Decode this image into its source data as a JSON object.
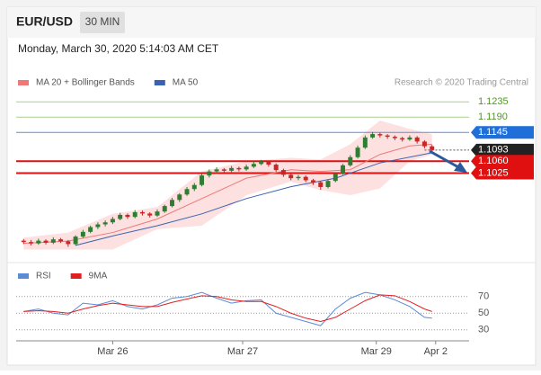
{
  "header": {
    "symbol": "EUR/USD",
    "interval": "30 MIN"
  },
  "timestamp": "Monday, March 30, 2020 5:14:03 AM CET",
  "credit": "Research © 2020 Trading Central",
  "chart_data": [
    {
      "type": "candlestick",
      "up_color": "#2e7d32",
      "down_color": "#c62828",
      "open": [
        1.0826,
        1.0822,
        1.0818,
        1.0826,
        1.082,
        1.083,
        1.0824,
        1.0816,
        1.0838,
        1.0852,
        1.0866,
        1.0874,
        1.088,
        1.089,
        1.0902,
        1.0896,
        1.091,
        1.0906,
        1.09,
        1.0912,
        1.0928,
        1.0946,
        1.0962,
        1.0978,
        1.099,
        1.1018,
        1.103,
        1.1036,
        1.1032,
        1.104,
        1.1036,
        1.1044,
        1.1052,
        1.1058,
        1.105,
        1.1034,
        1.102,
        1.101,
        1.1014,
        1.1004,
        1.0998,
        1.0984,
        1.1002,
        1.1024,
        1.1048,
        1.1072,
        1.11,
        1.113,
        1.114,
        1.1136,
        1.1132,
        1.1128,
        1.1124,
        1.113,
        1.1118,
        1.1104
      ],
      "high": [
        1.0831,
        1.0828,
        1.0832,
        1.083,
        1.0836,
        1.0834,
        1.0828,
        1.0842,
        1.0858,
        1.087,
        1.088,
        1.0886,
        1.0896,
        1.0908,
        1.0906,
        1.0916,
        1.0915,
        1.091,
        1.0918,
        1.0932,
        1.0952,
        1.0966,
        1.0984,
        1.0996,
        1.1024,
        1.1036,
        1.1042,
        1.104,
        1.1046,
        1.1044,
        1.105,
        1.1058,
        1.1064,
        1.1062,
        1.1054,
        1.1038,
        1.1024,
        1.102,
        1.1018,
        1.1008,
        1.1002,
        1.1006,
        1.1028,
        1.1052,
        1.1078,
        1.1106,
        1.1136,
        1.1146,
        1.1144,
        1.114,
        1.1136,
        1.1132,
        1.1136,
        1.1134,
        1.1122,
        1.1108
      ],
      "low": [
        1.0816,
        1.0812,
        1.0814,
        1.0815,
        1.0816,
        1.0819,
        1.0808,
        1.0812,
        1.0834,
        1.0848,
        1.086,
        1.0868,
        1.0875,
        1.0886,
        1.089,
        1.0892,
        1.09,
        1.0894,
        1.0896,
        1.0908,
        1.0924,
        1.094,
        1.0958,
        1.0972,
        1.0986,
        1.1012,
        1.1024,
        1.1026,
        1.1028,
        1.103,
        1.1032,
        1.104,
        1.1048,
        1.1044,
        1.1028,
        1.1014,
        1.1004,
        1.1004,
        1.0998,
        1.099,
        1.0976,
        1.098,
        1.0998,
        1.102,
        1.1044,
        1.1068,
        1.1096,
        1.1126,
        1.113,
        1.1126,
        1.1122,
        1.1118,
        1.112,
        1.1112,
        1.1098,
        1.1088
      ],
      "close": [
        1.0822,
        1.0818,
        1.0826,
        1.082,
        1.083,
        1.0824,
        1.0816,
        1.0838,
        1.0852,
        1.0866,
        1.0874,
        1.088,
        1.089,
        1.0902,
        1.0896,
        1.091,
        1.0906,
        1.09,
        1.0912,
        1.0928,
        1.0946,
        1.0962,
        1.0978,
        1.099,
        1.1018,
        1.103,
        1.1036,
        1.1032,
        1.104,
        1.1036,
        1.1044,
        1.1052,
        1.1058,
        1.105,
        1.1034,
        1.102,
        1.101,
        1.1014,
        1.1004,
        1.0998,
        1.0984,
        1.1002,
        1.1024,
        1.1048,
        1.1072,
        1.11,
        1.113,
        1.114,
        1.1136,
        1.1132,
        1.1128,
        1.1124,
        1.113,
        1.1118,
        1.1104,
        1.1093
      ],
      "series": [
        {
          "name": "MA 20 + Bollinger Bands",
          "color": "#f07878",
          "band_color": "#fde0e0",
          "x": [
            0,
            6,
            12,
            18,
            24,
            30,
            36,
            40,
            44,
            48,
            52,
            55
          ],
          "values": [
            1.0818,
            1.0825,
            1.085,
            1.089,
            1.095,
            1.101,
            1.1035,
            1.103,
            1.1035,
            1.108,
            1.1105,
            1.111
          ],
          "upper": [
            1.0835,
            1.085,
            1.0905,
            1.0925,
            1.103,
            1.106,
            1.107,
            1.1065,
            1.111,
            1.118,
            1.1155,
            1.114
          ],
          "lower": [
            1.08,
            1.08,
            1.08,
            1.086,
            1.087,
            1.096,
            1.1,
            1.0975,
            1.096,
            1.098,
            1.106,
            1.108
          ]
        },
        {
          "name": "MA 50",
          "color": "#3a62b0",
          "x": [
            7,
            12,
            18,
            24,
            30,
            36,
            42,
            48,
            55
          ],
          "values": [
            1.0812,
            1.084,
            1.087,
            1.0905,
            1.095,
            1.0985,
            1.101,
            1.1055,
            1.1085
          ]
        }
      ],
      "levels": [
        {
          "value": 1.1235,
          "color": "#4e9a1e",
          "line_color": "#a9d18e",
          "box": false
        },
        {
          "value": 1.119,
          "label": "1.1190",
          "color": "#4e9a1e",
          "line_color": "#a9d18e",
          "box": false
        },
        {
          "value": 1.1145,
          "color": "#1e6fd9",
          "line_color": "#5b8fe0",
          "box": true
        },
        {
          "value": 1.1093,
          "color": "#222222",
          "line_color": "#555555",
          "box": true,
          "dotted": true
        },
        {
          "value": 1.106,
          "label": "1.1060",
          "color": "#e01010",
          "line_color": "#e01010",
          "box": true,
          "thick": true
        },
        {
          "value": 1.1025,
          "color": "#e01010",
          "line_color": "#e01010",
          "box": true,
          "thick": true
        }
      ],
      "xlim": [
        -1,
        60
      ],
      "ylim": [
        1.078,
        1.127
      ],
      "xticks": [
        {
          "value": 12,
          "label": "Mar 26"
        },
        {
          "value": 29.5,
          "label": "Mar 27"
        },
        {
          "value": 47.5,
          "label": "Mar 29"
        },
        {
          "value": 55.5,
          "label": "Apr 2"
        }
      ]
    },
    {
      "type": "line",
      "xlim": [
        -1,
        60
      ],
      "ylim": [
        20,
        100
      ],
      "yticks": [
        70,
        50,
        30
      ],
      "x": [
        0,
        2,
        4,
        6,
        8,
        10,
        12,
        14,
        16,
        18,
        20,
        22,
        24,
        26,
        28,
        30,
        32,
        34,
        36,
        38,
        40,
        42,
        44,
        46,
        48,
        50,
        52,
        54,
        55
      ],
      "series": [
        {
          "name": "RSI",
          "color": "#5b8bd6",
          "values": [
            52,
            55,
            50,
            48,
            62,
            60,
            65,
            58,
            55,
            60,
            68,
            70,
            75,
            68,
            62,
            65,
            66,
            50,
            45,
            40,
            35,
            55,
            68,
            75,
            72,
            66,
            58,
            45,
            44
          ]
        },
        {
          "name": "9MA",
          "color": "#e02020",
          "values": [
            52,
            53,
            52,
            50,
            55,
            59,
            62,
            60,
            58,
            58,
            63,
            67,
            71,
            70,
            66,
            64,
            64,
            58,
            50,
            44,
            40,
            45,
            55,
            65,
            72,
            71,
            64,
            55,
            52
          ]
        }
      ]
    }
  ]
}
